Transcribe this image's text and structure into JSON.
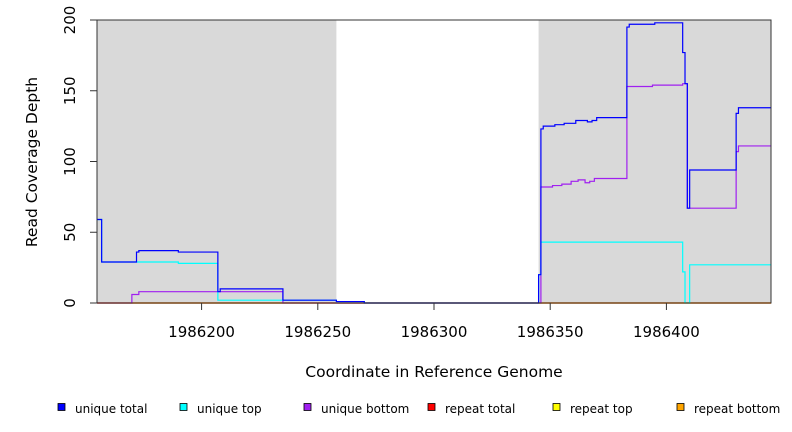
{
  "chart_data": {
    "type": "line",
    "xlabel": "Coordinate in Reference Genome",
    "ylabel": "Read Coverage Depth",
    "xlim": [
      1986155,
      1986445
    ],
    "ylim": [
      0,
      200
    ],
    "x_ticks": [
      1986200,
      1986250,
      1986300,
      1986350,
      1986400
    ],
    "y_ticks": [
      0,
      50,
      100,
      150,
      200
    ],
    "shaded_regions": [
      [
        1986155,
        1986258
      ],
      [
        1986345,
        1986445
      ]
    ],
    "legend_position": "bottom",
    "series": [
      {
        "name": "unique total",
        "color": "#0000ff",
        "x": [
          1986155,
          1986157,
          1986157,
          1986172,
          1986172,
          1986173,
          1986173,
          1986190,
          1986190,
          1986207,
          1986207,
          1986208,
          1986208,
          1986235,
          1986235,
          1986258,
          1986258,
          1986270,
          1986270,
          1986345,
          1986345,
          1986346,
          1986346,
          1986347,
          1986347,
          1986352,
          1986352,
          1986356,
          1986356,
          1986361,
          1986361,
          1986366,
          1986366,
          1986368,
          1986368,
          1986370,
          1986370,
          1986383,
          1986383,
          1986384,
          1986384,
          1986395,
          1986395,
          1986407,
          1986407,
          1986408,
          1986408,
          1986409,
          1986409,
          1986410,
          1986410,
          1986430,
          1986430,
          1986431,
          1986431,
          1986445
        ],
        "y": [
          59,
          59,
          29,
          29,
          36,
          36,
          37,
          37,
          36,
          36,
          8,
          8,
          10,
          10,
          2,
          2,
          1,
          1,
          0,
          0,
          20,
          20,
          123,
          123,
          125,
          125,
          126,
          126,
          127,
          127,
          129,
          129,
          128,
          128,
          129,
          129,
          131,
          131,
          195,
          195,
          197,
          197,
          198,
          198,
          177,
          177,
          155,
          155,
          67,
          67,
          94,
          94,
          134,
          134,
          138,
          138
        ]
      },
      {
        "name": "unique top",
        "color": "#00ffff",
        "x": [
          1986155,
          1986157,
          1986157,
          1986172,
          1986172,
          1986190,
          1986190,
          1986207,
          1986207,
          1986208,
          1986208,
          1986235,
          1986235,
          1986258,
          1986258,
          1986270,
          1986270,
          1986345,
          1986345,
          1986346,
          1986346,
          1986407,
          1986407,
          1986408,
          1986408,
          1986410,
          1986410,
          1986445
        ],
        "y": [
          59,
          59,
          29,
          29,
          29,
          29,
          28,
          28,
          2,
          2,
          2,
          2,
          2,
          2,
          1,
          1,
          0,
          0,
          20,
          20,
          43,
          43,
          22,
          22,
          0,
          0,
          27,
          27
        ]
      },
      {
        "name": "unique bottom",
        "color": "#a020f0",
        "x": [
          1986155,
          1986170,
          1986170,
          1986173,
          1986173,
          1986207,
          1986207,
          1986235,
          1986235,
          1986345,
          1986345,
          1986346,
          1986346,
          1986351,
          1986351,
          1986355,
          1986355,
          1986359,
          1986359,
          1986362,
          1986362,
          1986365,
          1986365,
          1986367,
          1986367,
          1986369,
          1986369,
          1986383,
          1986383,
          1986394,
          1986394,
          1986407,
          1986407,
          1986409,
          1986409,
          1986430,
          1986430,
          1986431,
          1986431,
          1986445
        ],
        "y": [
          0,
          0,
          6,
          6,
          8,
          8,
          8,
          8,
          0,
          0,
          0,
          0,
          82,
          82,
          83,
          83,
          84,
          84,
          86,
          86,
          87,
          87,
          85,
          85,
          86,
          86,
          88,
          88,
          153,
          153,
          154,
          154,
          155,
          155,
          67,
          67,
          107,
          107,
          111,
          111
        ]
      },
      {
        "name": "repeat total",
        "color": "#ff0000",
        "x": [
          1986155,
          1986445
        ],
        "y": [
          0,
          0
        ]
      },
      {
        "name": "repeat top",
        "color": "#ffff00",
        "x": [
          1986155,
          1986445
        ],
        "y": [
          0,
          0
        ]
      },
      {
        "name": "repeat bottom",
        "color": "#ffa500",
        "x": [
          1986155,
          1986445
        ],
        "y": [
          0,
          0
        ]
      }
    ]
  }
}
